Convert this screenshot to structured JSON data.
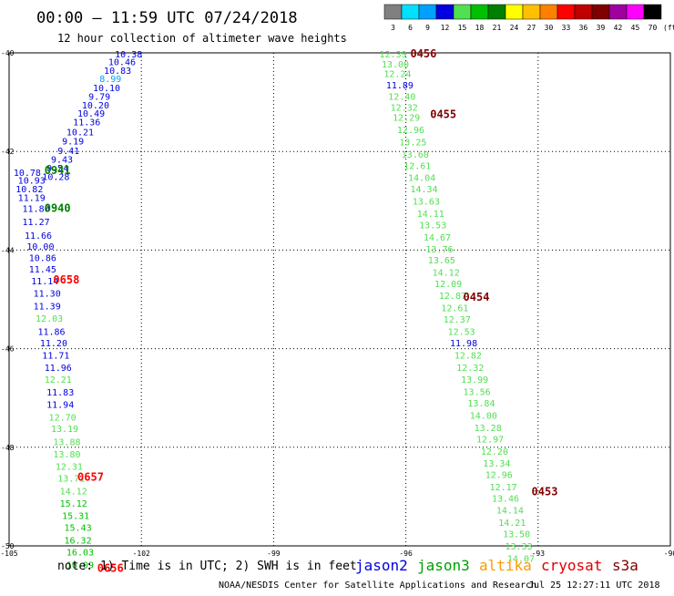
{
  "header": {
    "title": "00:00 – 11:59 UTC 07/24/2018",
    "subtitle": "12 hour collection of altimeter wave heights"
  },
  "legend": {
    "items": [
      {
        "label": "3",
        "color": "#808080"
      },
      {
        "label": "6",
        "color": "#00e0ff"
      },
      {
        "label": "9",
        "color": "#00a0ff"
      },
      {
        "label": "12",
        "color": "#0000e0"
      },
      {
        "label": "15",
        "color": "#50e050"
      },
      {
        "label": "18",
        "color": "#00c000"
      },
      {
        "label": "21",
        "color": "#008000"
      },
      {
        "label": "24",
        "color": "#ffff00"
      },
      {
        "label": "27",
        "color": "#ffc000"
      },
      {
        "label": "30",
        "color": "#ff8000"
      },
      {
        "label": "33",
        "color": "#ff0000"
      },
      {
        "label": "36",
        "color": "#c00000"
      },
      {
        "label": "39",
        "color": "#800000"
      },
      {
        "label": "42",
        "color": "#a000a0"
      },
      {
        "label": "45",
        "color": "#ff00ff"
      },
      {
        "label": "70",
        "color": "#000000"
      }
    ],
    "unit": "(ft)"
  },
  "map": {
    "lon_range": [
      -105,
      -90
    ],
    "lat_range": [
      -50,
      -40
    ],
    "lat_ticks": [
      "-40",
      "-42",
      "-44",
      "-46",
      "-48",
      "-50"
    ],
    "lon_ticks": [
      "-105",
      "-102",
      "-99",
      "-96",
      "-93",
      "-90"
    ],
    "grid_lons": [
      -102,
      -99,
      -96,
      -93
    ],
    "grid_lats": [
      -42,
      -44,
      -46,
      -48
    ]
  },
  "tracks": [
    {
      "name": "track-left",
      "obs": [
        {
          "lon": -102.6,
          "lat": -40.02,
          "v": "10.38",
          "c": "#0000e0"
        },
        {
          "lon": -102.75,
          "lat": -40.18,
          "v": "10.46",
          "c": "#0000e0"
        },
        {
          "lon": -102.85,
          "lat": -40.35,
          "v": "10.83",
          "c": "#0000e0"
        },
        {
          "lon": -102.95,
          "lat": -40.52,
          "v": "8.99",
          "c": "#00a0ff"
        },
        {
          "lon": -103.1,
          "lat": -40.7,
          "v": "10.10",
          "c": "#0000e0"
        },
        {
          "lon": -103.2,
          "lat": -40.88,
          "v": "9.79",
          "c": "#0000e0"
        },
        {
          "lon": -103.35,
          "lat": -41.05,
          "v": "10.20",
          "c": "#0000e0"
        },
        {
          "lon": -103.45,
          "lat": -41.22,
          "v": "10.49",
          "c": "#0000e0"
        },
        {
          "lon": -103.55,
          "lat": -41.4,
          "v": "11.36",
          "c": "#0000e0"
        },
        {
          "lon": -103.7,
          "lat": -41.6,
          "v": "10.21",
          "c": "#0000e0"
        },
        {
          "lon": -103.8,
          "lat": -41.78,
          "v": "9.19",
          "c": "#0000e0"
        },
        {
          "lon": -103.9,
          "lat": -41.98,
          "v": "9.41",
          "c": "#0000e0"
        },
        {
          "lon": -104.05,
          "lat": -42.15,
          "v": "9.43",
          "c": "#0000e0"
        },
        {
          "lon": -104.15,
          "lat": -42.33,
          "v": "9.54",
          "c": "#0000e0"
        },
        {
          "lon": -104.25,
          "lat": -42.5,
          "v": "10.28",
          "c": "#0000e0"
        },
        {
          "lon": -104.9,
          "lat": -42.42,
          "v": "10.78",
          "c": "#0000e0"
        },
        {
          "lon": -104.8,
          "lat": -42.58,
          "v": "10.93",
          "c": "#0000e0"
        },
        {
          "lon": -104.85,
          "lat": -42.75,
          "v": "10.82",
          "c": "#0000e0"
        },
        {
          "lon": -104.8,
          "lat": -42.93,
          "v": "11.19",
          "c": "#0000e0"
        },
        {
          "lon": -104.7,
          "lat": -43.15,
          "v": "11.80",
          "c": "#0000e0"
        },
        {
          "lon": -104.7,
          "lat": -43.42,
          "v": "11.27",
          "c": "#0000e0"
        },
        {
          "lon": -104.65,
          "lat": -43.7,
          "v": "11.66",
          "c": "#0000e0"
        },
        {
          "lon": -104.6,
          "lat": -43.92,
          "v": "10.00",
          "c": "#0000e0"
        },
        {
          "lon": -104.55,
          "lat": -44.15,
          "v": "10.86",
          "c": "#0000e0"
        },
        {
          "lon": -104.55,
          "lat": -44.38,
          "v": "11.45",
          "c": "#0000e0"
        },
        {
          "lon": -104.5,
          "lat": -44.62,
          "v": "11.14",
          "c": "#0000e0"
        },
        {
          "lon": -104.45,
          "lat": -44.87,
          "v": "11.30",
          "c": "#0000e0"
        },
        {
          "lon": -104.45,
          "lat": -45.13,
          "v": "11.39",
          "c": "#0000e0"
        },
        {
          "lon": -104.4,
          "lat": -45.38,
          "v": "12.03",
          "c": "#50e050"
        },
        {
          "lon": -104.35,
          "lat": -45.65,
          "v": "11.86",
          "c": "#0000e0"
        },
        {
          "lon": -104.3,
          "lat": -45.88,
          "v": "11.20",
          "c": "#0000e0"
        },
        {
          "lon": -104.25,
          "lat": -46.13,
          "v": "11.71",
          "c": "#0000e0"
        },
        {
          "lon": -104.2,
          "lat": -46.38,
          "v": "11.96",
          "c": "#0000e0"
        },
        {
          "lon": -104.2,
          "lat": -46.62,
          "v": "12.21",
          "c": "#50e050"
        },
        {
          "lon": -104.15,
          "lat": -46.88,
          "v": "11.83",
          "c": "#0000e0"
        },
        {
          "lon": -104.15,
          "lat": -47.13,
          "v": "11.94",
          "c": "#0000e0"
        },
        {
          "lon": -104.1,
          "lat": -47.38,
          "v": "12.70",
          "c": "#50e050"
        },
        {
          "lon": -104.05,
          "lat": -47.62,
          "v": "13.19",
          "c": "#50e050"
        },
        {
          "lon": -104.0,
          "lat": -47.88,
          "v": "13.88",
          "c": "#50e050"
        },
        {
          "lon": -104.0,
          "lat": -48.13,
          "v": "13.80",
          "c": "#50e050"
        },
        {
          "lon": -103.95,
          "lat": -48.38,
          "v": "12.31",
          "c": "#50e050"
        },
        {
          "lon": -103.9,
          "lat": -48.62,
          "v": "13.71",
          "c": "#50e050"
        },
        {
          "lon": -103.85,
          "lat": -48.88,
          "v": "14.12",
          "c": "#50e050"
        },
        {
          "lon": -103.85,
          "lat": -49.13,
          "v": "15.12",
          "c": "#00c000"
        },
        {
          "lon": -103.8,
          "lat": -49.38,
          "v": "15.31",
          "c": "#00c000"
        },
        {
          "lon": -103.75,
          "lat": -49.62,
          "v": "15.43",
          "c": "#00c000"
        },
        {
          "lon": -103.75,
          "lat": -49.88,
          "v": "16.32",
          "c": "#00c000"
        },
        {
          "lon": -103.7,
          "lat": -50.12,
          "v": "16.03",
          "c": "#00c000"
        },
        {
          "lon": -103.7,
          "lat": -50.38,
          "v": "16.09",
          "c": "#00c000"
        }
      ]
    },
    {
      "name": "track-right",
      "obs": [
        {
          "lon": -96.6,
          "lat": -40.02,
          "v": "12.39",
          "c": "#50e050"
        },
        {
          "lon": -96.55,
          "lat": -40.22,
          "v": "13.00",
          "c": "#50e050"
        },
        {
          "lon": -96.5,
          "lat": -40.42,
          "v": "12.24",
          "c": "#50e050"
        },
        {
          "lon": -96.45,
          "lat": -40.65,
          "v": "11.89",
          "c": "#0000e0"
        },
        {
          "lon": -96.4,
          "lat": -40.88,
          "v": "12.40",
          "c": "#50e050"
        },
        {
          "lon": -96.35,
          "lat": -41.1,
          "v": "12.32",
          "c": "#50e050"
        },
        {
          "lon": -96.3,
          "lat": -41.3,
          "v": "12.29",
          "c": "#50e050"
        },
        {
          "lon": -96.2,
          "lat": -41.55,
          "v": "12.96",
          "c": "#50e050"
        },
        {
          "lon": -96.15,
          "lat": -41.8,
          "v": "13.25",
          "c": "#50e050"
        },
        {
          "lon": -96.1,
          "lat": -42.05,
          "v": "13.60",
          "c": "#50e050"
        },
        {
          "lon": -96.05,
          "lat": -42.28,
          "v": "12.61",
          "c": "#50e050"
        },
        {
          "lon": -95.95,
          "lat": -42.52,
          "v": "14.04",
          "c": "#50e050"
        },
        {
          "lon": -95.9,
          "lat": -42.75,
          "v": "14.34",
          "c": "#50e050"
        },
        {
          "lon": -95.85,
          "lat": -43.0,
          "v": "13.63",
          "c": "#50e050"
        },
        {
          "lon": -95.75,
          "lat": -43.25,
          "v": "14.11",
          "c": "#50e050"
        },
        {
          "lon": -95.7,
          "lat": -43.48,
          "v": "13.53",
          "c": "#50e050"
        },
        {
          "lon": -95.6,
          "lat": -43.73,
          "v": "14.67",
          "c": "#50e050"
        },
        {
          "lon": -95.55,
          "lat": -43.97,
          "v": "13.76",
          "c": "#50e050"
        },
        {
          "lon": -95.5,
          "lat": -44.2,
          "v": "13.65",
          "c": "#50e050"
        },
        {
          "lon": -95.4,
          "lat": -44.45,
          "v": "14.12",
          "c": "#50e050"
        },
        {
          "lon": -95.35,
          "lat": -44.68,
          "v": "12.09",
          "c": "#50e050"
        },
        {
          "lon": -95.25,
          "lat": -44.92,
          "v": "12.87",
          "c": "#50e050"
        },
        {
          "lon": -95.2,
          "lat": -45.17,
          "v": "12.61",
          "c": "#50e050"
        },
        {
          "lon": -95.15,
          "lat": -45.4,
          "v": "12.37",
          "c": "#50e050"
        },
        {
          "lon": -95.05,
          "lat": -45.65,
          "v": "12.53",
          "c": "#50e050"
        },
        {
          "lon": -95.0,
          "lat": -45.88,
          "v": "11.98",
          "c": "#0000e0"
        },
        {
          "lon": -94.9,
          "lat": -46.13,
          "v": "12.82",
          "c": "#50e050"
        },
        {
          "lon": -94.85,
          "lat": -46.38,
          "v": "12.32",
          "c": "#50e050"
        },
        {
          "lon": -94.75,
          "lat": -46.62,
          "v": "13.99",
          "c": "#50e050"
        },
        {
          "lon": -94.7,
          "lat": -46.87,
          "v": "13.56",
          "c": "#50e050"
        },
        {
          "lon": -94.6,
          "lat": -47.1,
          "v": "13.84",
          "c": "#50e050"
        },
        {
          "lon": -94.55,
          "lat": -47.35,
          "v": "14.00",
          "c": "#50e050"
        },
        {
          "lon": -94.45,
          "lat": -47.6,
          "v": "13.28",
          "c": "#50e050"
        },
        {
          "lon": -94.4,
          "lat": -47.83,
          "v": "12.97",
          "c": "#50e050"
        },
        {
          "lon": -94.3,
          "lat": -48.08,
          "v": "12.20",
          "c": "#50e050"
        },
        {
          "lon": -94.25,
          "lat": -48.32,
          "v": "13.34",
          "c": "#50e050"
        },
        {
          "lon": -94.2,
          "lat": -48.55,
          "v": "12.96",
          "c": "#50e050"
        },
        {
          "lon": -94.1,
          "lat": -48.8,
          "v": "12.17",
          "c": "#50e050"
        },
        {
          "lon": -94.05,
          "lat": -49.03,
          "v": "13.46",
          "c": "#50e050"
        },
        {
          "lon": -93.95,
          "lat": -49.27,
          "v": "14.14",
          "c": "#50e050"
        },
        {
          "lon": -93.9,
          "lat": -49.52,
          "v": "14.21",
          "c": "#50e050"
        },
        {
          "lon": -93.8,
          "lat": -49.75,
          "v": "13.50",
          "c": "#50e050"
        },
        {
          "lon": -93.75,
          "lat": -50.0,
          "v": "13.33",
          "c": "#50e050"
        },
        {
          "lon": -93.7,
          "lat": -50.25,
          "v": "14.07",
          "c": "#50e050"
        }
      ]
    }
  ],
  "time_labels": [
    {
      "text": "0941",
      "lon": -104.2,
      "lat": -42.38,
      "color": "#008000"
    },
    {
      "text": "0940",
      "lon": -104.2,
      "lat": -43.15,
      "color": "#008000"
    },
    {
      "text": "0658",
      "lon": -104.0,
      "lat": -44.6,
      "color": "#ff0000"
    },
    {
      "text": "0657",
      "lon": -103.45,
      "lat": -48.6,
      "color": "#ff0000"
    },
    {
      "text": "0656",
      "lon": -103.0,
      "lat": -50.45,
      "color": "#ff0000"
    },
    {
      "text": "0456",
      "lon": -95.9,
      "lat": -40.02,
      "color": "#800000"
    },
    {
      "text": "0455",
      "lon": -95.45,
      "lat": -41.25,
      "color": "#800000"
    },
    {
      "text": "0454",
      "lon": -94.7,
      "lat": -44.95,
      "color": "#800000"
    },
    {
      "text": "0453",
      "lon": -93.15,
      "lat": -48.9,
      "color": "#800000"
    }
  ],
  "note": "note: 1) Time is in UTC; 2) SWH is in feet",
  "satellites": [
    {
      "name": "jason2",
      "color": "#0000e0"
    },
    {
      "name": "jason3",
      "color": "#00a000"
    },
    {
      "name": "altika",
      "color": "#ff9900"
    },
    {
      "name": "cryosat",
      "color": "#e00000"
    },
    {
      "name": "s3a",
      "color": "#800000"
    }
  ],
  "footer": {
    "credit": "NOAA/NESDIS Center for Satellite Applications and Research",
    "timestamp": "Jul 25 12:27:11 UTC 2018"
  }
}
